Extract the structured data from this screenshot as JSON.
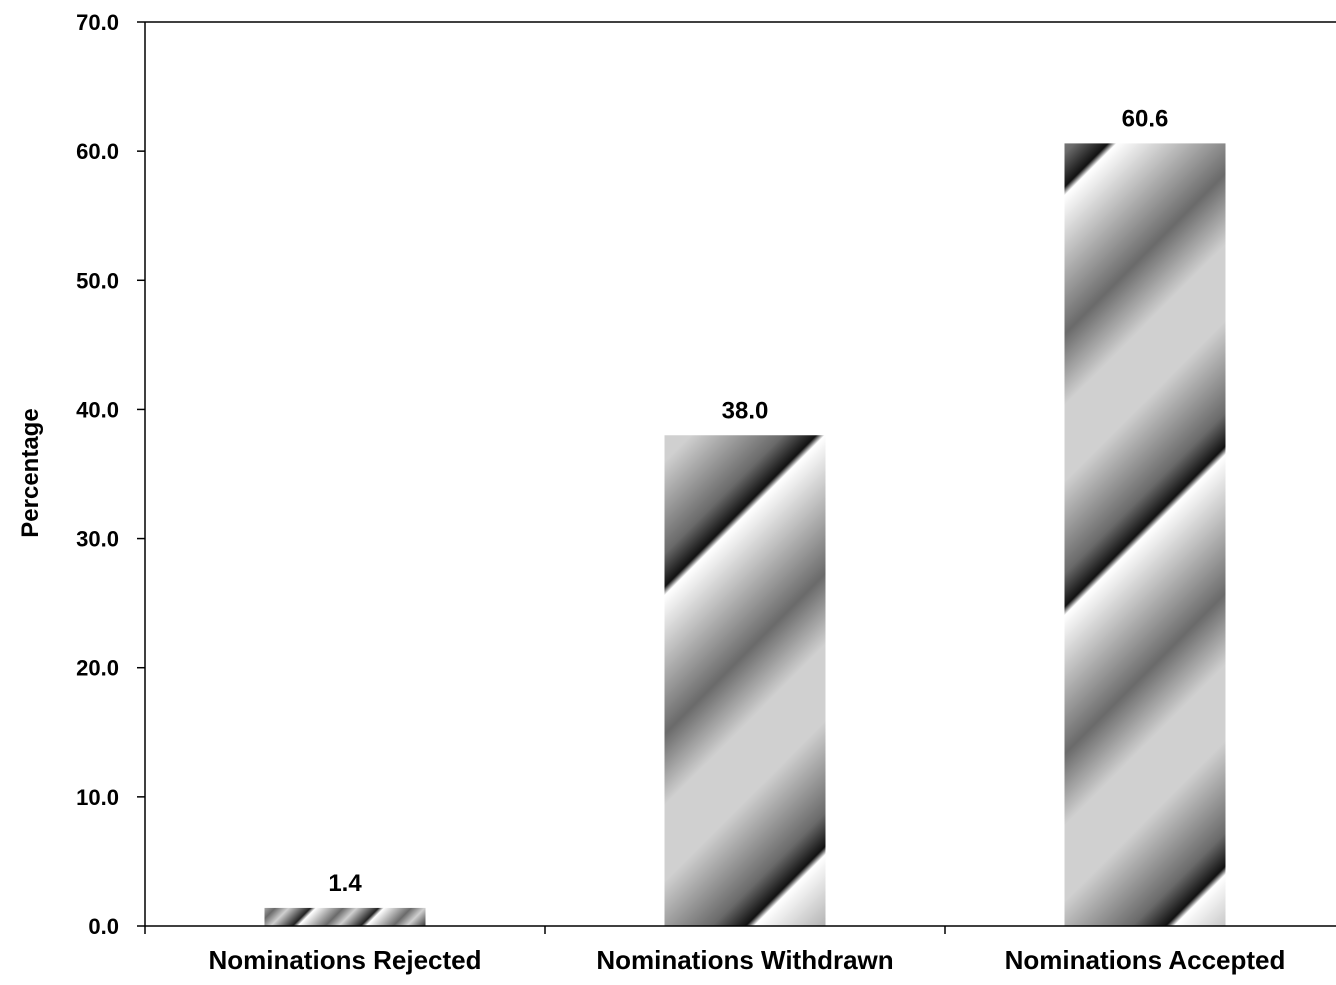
{
  "chart_data": {
    "type": "bar",
    "categories": [
      "Nominations Rejected",
      "Nominations Withdrawn",
      "Nominations Accepted"
    ],
    "values": [
      1.4,
      38.0,
      60.6
    ],
    "data_labels": [
      "1.4",
      "38.0",
      "60.6"
    ],
    "title": "",
    "xlabel": "",
    "ylabel": "Percentage",
    "ylim": [
      0,
      70
    ],
    "yticks": [
      0,
      10,
      20,
      30,
      40,
      50,
      60,
      70
    ],
    "ytick_labels": [
      "0.0",
      "10.0",
      "20.0",
      "30.0",
      "40.0",
      "50.0",
      "60.0",
      "70.0"
    ],
    "grid": false,
    "legend": "none",
    "bar_fill": "diagonal gray gradient stripes",
    "colors": {
      "bar_light": "#ffffff",
      "bar_mid": "#d0d0d0",
      "bar_dark": "#111111",
      "axis": "#000000"
    }
  }
}
